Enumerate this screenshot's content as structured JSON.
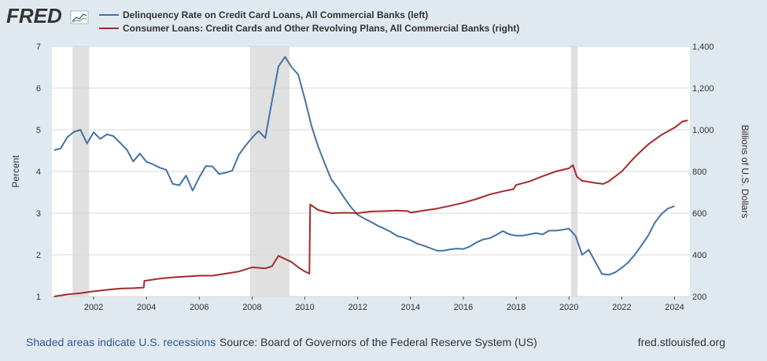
{
  "logo": {
    "text": "FRED"
  },
  "footer": {
    "recession_note": "Shaded areas indicate U.S. recessions",
    "source": "Source: Board of Governors of the Federal Reserve System (US)",
    "site": "fred.stlouisfed.org"
  },
  "colors": {
    "background": "#e1e9f0",
    "plot_bg": "#ffffff",
    "left_series": "#4472a4",
    "right_series": "#a52a2a",
    "recession": "#e0e0e0",
    "grid": "#d9d9d9"
  },
  "chart_data": {
    "type": "line",
    "xlim": [
      2000.42,
      2024.58
    ],
    "x_ticks": [
      2002,
      2004,
      2006,
      2008,
      2010,
      2012,
      2014,
      2016,
      2018,
      2020,
      2022,
      2024
    ],
    "left_axis": {
      "label": "Percent",
      "ylim": [
        1,
        7
      ],
      "ticks": [
        1,
        2,
        3,
        4,
        5,
        6,
        7
      ]
    },
    "right_axis": {
      "label": "Billions of U.S. Dollars",
      "ylim": [
        200,
        1400
      ],
      "ticks": [
        "200",
        "400",
        "600",
        "800",
        "1,000",
        "1,200",
        "1,400"
      ],
      "tick_values": [
        200,
        400,
        600,
        800,
        1000,
        1200,
        1400
      ]
    },
    "grid": true,
    "legend": "top-left",
    "recessions": [
      [
        2001.2,
        2001.83
      ],
      [
        2007.92,
        2009.42
      ],
      [
        2020.08,
        2020.33
      ]
    ],
    "series": [
      {
        "name": "Delinquency Rate on Credit Card Loans, All Commercial Banks (left)",
        "axis": "left",
        "x": [
          2000.5,
          2000.75,
          2001.0,
          2001.25,
          2001.5,
          2001.75,
          2002.0,
          2002.25,
          2002.5,
          2002.75,
          2003.0,
          2003.25,
          2003.5,
          2003.75,
          2004.0,
          2004.25,
          2004.5,
          2004.75,
          2005.0,
          2005.25,
          2005.5,
          2005.75,
          2006.0,
          2006.25,
          2006.5,
          2006.75,
          2007.0,
          2007.25,
          2007.5,
          2007.75,
          2008.0,
          2008.25,
          2008.5,
          2008.75,
          2009.0,
          2009.25,
          2009.5,
          2009.75,
          2010.0,
          2010.25,
          2010.5,
          2010.75,
          2011.0,
          2011.25,
          2011.5,
          2011.75,
          2012.0,
          2012.25,
          2012.5,
          2012.75,
          2013.0,
          2013.25,
          2013.5,
          2013.75,
          2014.0,
          2014.25,
          2014.5,
          2014.75,
          2015.0,
          2015.25,
          2015.5,
          2015.75,
          2016.0,
          2016.25,
          2016.5,
          2016.75,
          2017.0,
          2017.25,
          2017.5,
          2017.75,
          2018.0,
          2018.25,
          2018.5,
          2018.75,
          2019.0,
          2019.25,
          2019.5,
          2019.75,
          2020.0,
          2020.25,
          2020.5,
          2020.75,
          2021.0,
          2021.25,
          2021.5,
          2021.75,
          2022.0,
          2022.25,
          2022.5,
          2022.75,
          2023.0,
          2023.25,
          2023.5,
          2023.75,
          2024.0
        ],
        "values": [
          4.51,
          4.55,
          4.82,
          4.95,
          5.0,
          4.67,
          4.94,
          4.78,
          4.89,
          4.85,
          4.69,
          4.53,
          4.24,
          4.43,
          4.23,
          4.17,
          4.09,
          4.04,
          3.7,
          3.67,
          3.9,
          3.54,
          3.86,
          4.13,
          4.12,
          3.94,
          3.97,
          4.02,
          4.4,
          4.62,
          4.81,
          4.97,
          4.8,
          5.68,
          6.52,
          6.75,
          6.5,
          6.32,
          5.73,
          5.09,
          4.6,
          4.19,
          3.81,
          3.6,
          3.36,
          3.14,
          2.96,
          2.87,
          2.79,
          2.7,
          2.63,
          2.55,
          2.45,
          2.41,
          2.35,
          2.27,
          2.22,
          2.16,
          2.1,
          2.1,
          2.13,
          2.15,
          2.14,
          2.2,
          2.3,
          2.37,
          2.4,
          2.48,
          2.57,
          2.49,
          2.46,
          2.46,
          2.49,
          2.52,
          2.49,
          2.58,
          2.58,
          2.6,
          2.63,
          2.45,
          2.0,
          2.12,
          1.83,
          1.54,
          1.52,
          1.58,
          1.69,
          1.82,
          2.01,
          2.23,
          2.46,
          2.77,
          2.98,
          3.11,
          3.17
        ]
      },
      {
        "name": "Consumer Loans: Credit Cards and Other Revolving Plans, All Commercial Banks (right)",
        "axis": "right",
        "x": [
          2000.5,
          2001.0,
          2001.5,
          2002.0,
          2002.5,
          2003.0,
          2003.5,
          2003.9,
          2003.92,
          2004.5,
          2005.0,
          2005.5,
          2006.0,
          2006.5,
          2007.0,
          2007.5,
          2008.0,
          2008.5,
          2008.75,
          2009.0,
          2009.25,
          2009.5,
          2009.75,
          2010.0,
          2010.17,
          2010.2,
          2010.5,
          2011.0,
          2011.5,
          2012.0,
          2012.5,
          2013.0,
          2013.5,
          2013.9,
          2014.0,
          2014.5,
          2015.0,
          2015.5,
          2016.0,
          2016.5,
          2017.0,
          2017.5,
          2017.9,
          2018.0,
          2018.5,
          2019.0,
          2019.5,
          2020.0,
          2020.15,
          2020.3,
          2020.5,
          2021.0,
          2021.3,
          2021.5,
          2022.0,
          2022.5,
          2023.0,
          2023.5,
          2024.0,
          2024.3,
          2024.5
        ],
        "values": [
          200,
          210,
          216,
          225,
          232,
          238,
          240,
          243,
          275,
          286,
          292,
          296,
          300,
          300,
          310,
          320,
          340,
          335,
          345,
          395,
          380,
          365,
          340,
          320,
          310,
          642,
          615,
          600,
          602,
          600,
          608,
          610,
          612,
          610,
          603,
          612,
          622,
          635,
          650,
          668,
          690,
          705,
          715,
          735,
          752,
          777,
          800,
          815,
          830,
          775,
          755,
          745,
          740,
          752,
          800,
          870,
          930,
          975,
          1010,
          1040,
          1045
        ]
      }
    ]
  }
}
